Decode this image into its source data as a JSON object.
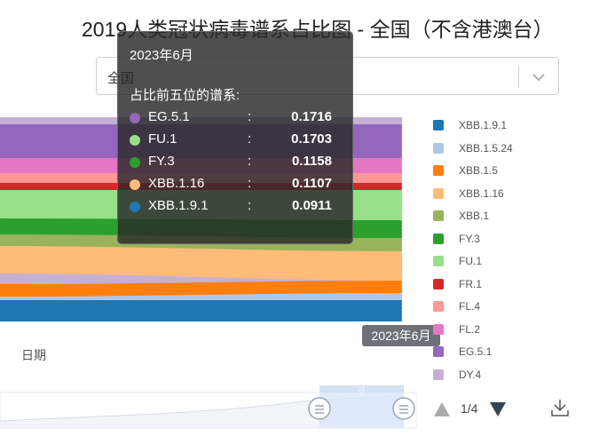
{
  "title": "2019人类冠状病毒谱系占比图 - 全国（不含港澳台）",
  "region_select": {
    "value": "全国"
  },
  "chart": {
    "x_axis_label": "日期",
    "axis_pointer_label": "2023年6月",
    "series_colors": {
      "XBB.1.9.1": "#1f77b4",
      "XBB.1.5.24": "#aec7e8",
      "XBB.1.5": "#ff7f0e",
      "XBB.1.16": "#ffbb78",
      "XBB.1": "#98b35a",
      "FY.3": "#2ca02c",
      "FU.1": "#98df8a",
      "FR.1": "#d62728",
      "FL.4": "#ff9896",
      "FL.2": "#e377c2",
      "EG.5.1": "#9467bd",
      "DY.4": "#c5b0d5"
    }
  },
  "legend": {
    "items": [
      "XBB.1.9.1",
      "XBB.1.5.24",
      "XBB.1.5",
      "XBB.1.16",
      "XBB.1",
      "FY.3",
      "FU.1",
      "FR.1",
      "FL.4",
      "FL.2",
      "EG.5.1",
      "DY.4"
    ],
    "page_text": "1/4"
  },
  "tooltip": {
    "header": "2023年6月",
    "subtitle": "占比前五位的谱系:",
    "rows": [
      {
        "name": "EG.5.1",
        "colon": ":",
        "value": "0.1716",
        "color": "#9467bd"
      },
      {
        "name": "FU.1",
        "colon": ":",
        "value": "0.1703",
        "color": "#98df8a"
      },
      {
        "name": "FY.3",
        "colon": ":",
        "value": "0.1158",
        "color": "#2ca02c"
      },
      {
        "name": "XBB.1.16",
        "colon": ":",
        "value": "0.1107",
        "color": "#ffbb78"
      },
      {
        "name": "XBB.1.9.1",
        "colon": ":",
        "value": "0.0911",
        "color": "#1f77b4"
      }
    ]
  },
  "icons": {
    "select_chevron": "chevron-down-icon",
    "pager_prev": "triangle-up-icon",
    "pager_next": "triangle-down-icon",
    "download": "download-icon",
    "slider_handle": "handle-icon"
  }
}
